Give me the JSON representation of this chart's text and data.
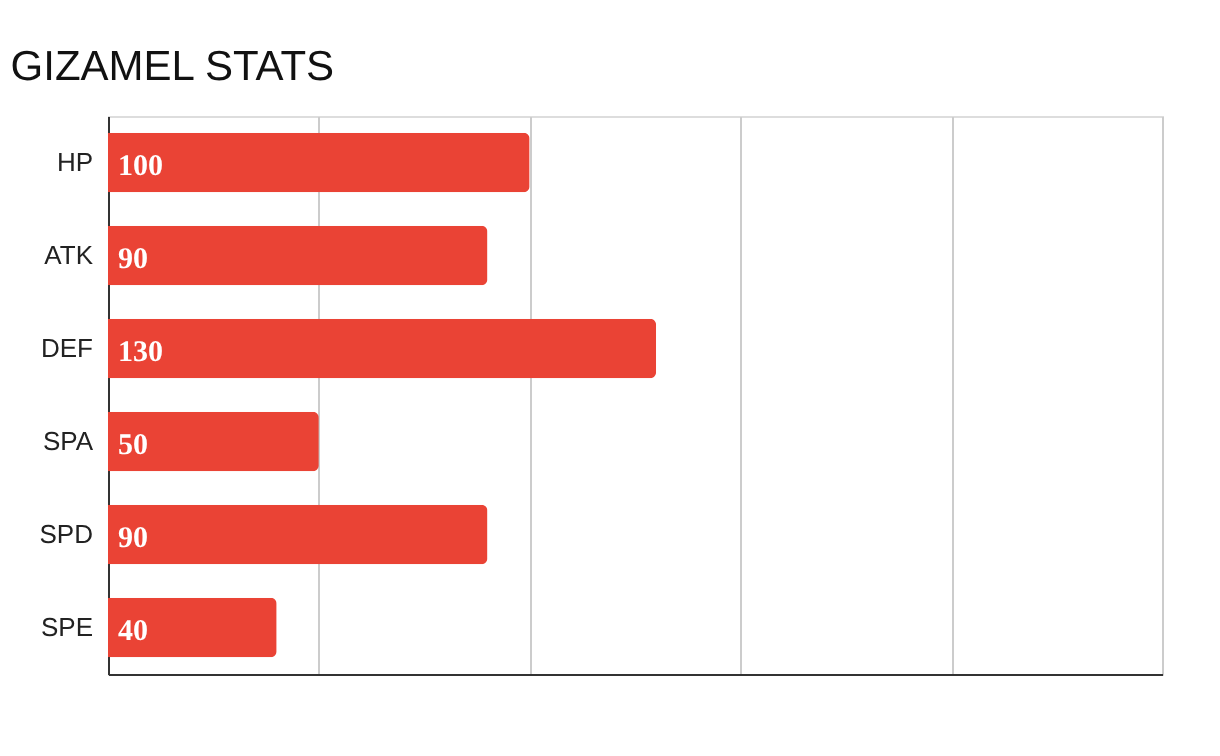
{
  "chart_data": {
    "type": "bar",
    "orientation": "horizontal",
    "title": "GIZAMEL STATS",
    "categories": [
      "HP",
      "ATK",
      "DEF",
      "SPA",
      "SPD",
      "SPE"
    ],
    "values": [
      100,
      90,
      130,
      50,
      90,
      40
    ],
    "color": "#ea4335",
    "xlim": [
      0,
      250
    ],
    "xticks": [
      {
        "value": 0,
        "label": null
      },
      {
        "value": 50,
        "label": null
      },
      {
        "value": 100,
        "label": null
      },
      {
        "value": 150,
        "label": null
      },
      {
        "value": 200,
        "label": null
      },
      {
        "value": 250,
        "label": null
      }
    ],
    "grid": "x",
    "tick_labels": "y",
    "data_labels": true
  }
}
